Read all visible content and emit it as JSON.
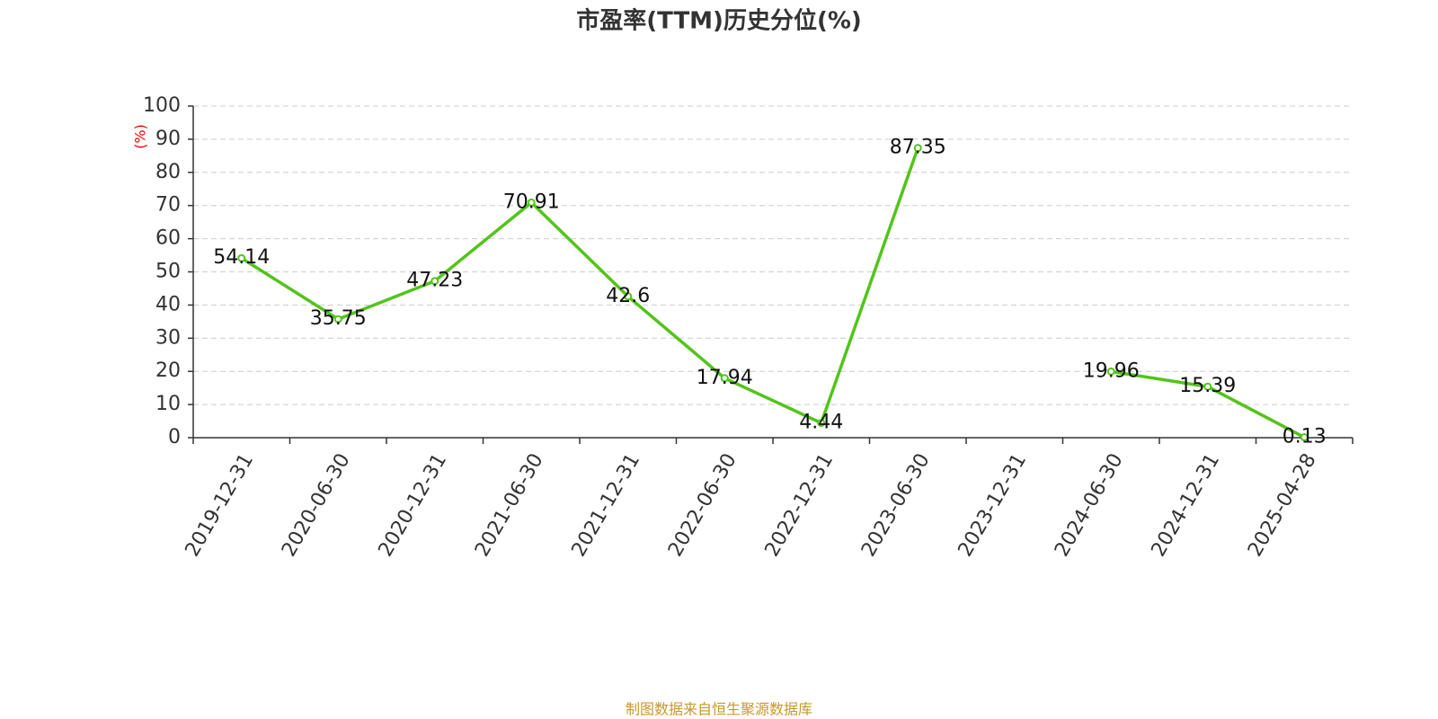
{
  "chart_data": {
    "type": "line",
    "title": "市盈率(TTM)历史分位(%)",
    "y_label": "(%)",
    "categories": [
      "2019-12-31",
      "2020-06-30",
      "2020-12-31",
      "2021-06-30",
      "2021-12-31",
      "2022-06-30",
      "2022-12-31",
      "2023-06-30",
      "2023-12-31",
      "2024-06-30",
      "2024-12-31",
      "2025-04-28"
    ],
    "values": [
      54.14,
      35.75,
      47.23,
      70.91,
      42.6,
      17.94,
      4.44,
      87.35,
      null,
      19.96,
      15.39,
      0.13
    ],
    "color": "#52c41a",
    "ylim": [
      0,
      100
    ],
    "yticks": [
      0,
      10,
      20,
      30,
      40,
      50,
      60,
      70,
      80,
      90,
      100
    ],
    "grid": true,
    "source": "制图数据来自恒生聚源数据库"
  }
}
